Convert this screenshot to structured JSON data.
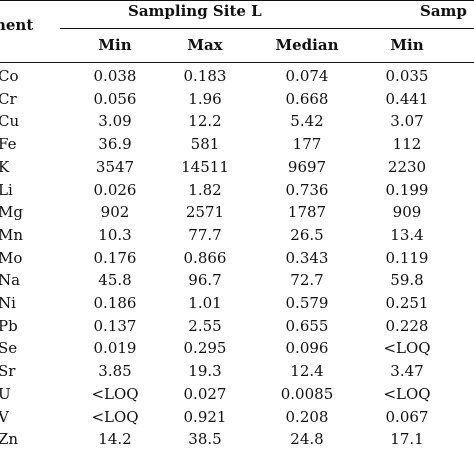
{
  "table": {
    "corner_label": "ment",
    "groups": [
      "Sampling Site L",
      "Samp"
    ],
    "columns": [
      "Min",
      "Max",
      "Median",
      "Min"
    ],
    "rows": [
      {
        "element": "Co",
        "values": [
          "0.038",
          "0.183",
          "0.074",
          "0.035"
        ]
      },
      {
        "element": "Cr",
        "values": [
          "0.056",
          "1.96",
          "0.668",
          "0.441"
        ]
      },
      {
        "element": "Cu",
        "values": [
          "3.09",
          "12.2",
          "5.42",
          "3.07"
        ]
      },
      {
        "element": "Fe",
        "values": [
          "36.9",
          "581",
          "177",
          "112"
        ]
      },
      {
        "element": "K",
        "values": [
          "3547",
          "14511",
          "9697",
          "2230"
        ]
      },
      {
        "element": "Li",
        "values": [
          "0.026",
          "1.82",
          "0.736",
          "0.199"
        ]
      },
      {
        "element": "Mg",
        "values": [
          "902",
          "2571",
          "1787",
          "909"
        ]
      },
      {
        "element": "Mn",
        "values": [
          "10.3",
          "77.7",
          "26.5",
          "13.4"
        ]
      },
      {
        "element": "Mo",
        "values": [
          "0.176",
          "0.866",
          "0.343",
          "0.119"
        ]
      },
      {
        "element": "Na",
        "values": [
          "45.8",
          "96.7",
          "72.7",
          "59.8"
        ]
      },
      {
        "element": "Ni",
        "values": [
          "0.186",
          "1.01",
          "0.579",
          "0.251"
        ]
      },
      {
        "element": "Pb",
        "values": [
          "0.137",
          "2.55",
          "0.655",
          "0.228"
        ]
      },
      {
        "element": "Se",
        "values": [
          "0.019",
          "0.295",
          "0.096",
          "<LOQ"
        ]
      },
      {
        "element": "Sr",
        "values": [
          "3.85",
          "19.3",
          "12.4",
          "3.47"
        ]
      },
      {
        "element": "U",
        "values": [
          "<LOQ",
          "0.027",
          "0.0085",
          "<LOQ"
        ]
      },
      {
        "element": "V",
        "values": [
          "<LOQ",
          "0.921",
          "0.208",
          "0.067"
        ]
      },
      {
        "element": "Zn",
        "values": [
          "14.2",
          "38.5",
          "24.8",
          "17.1"
        ]
      }
    ]
  }
}
